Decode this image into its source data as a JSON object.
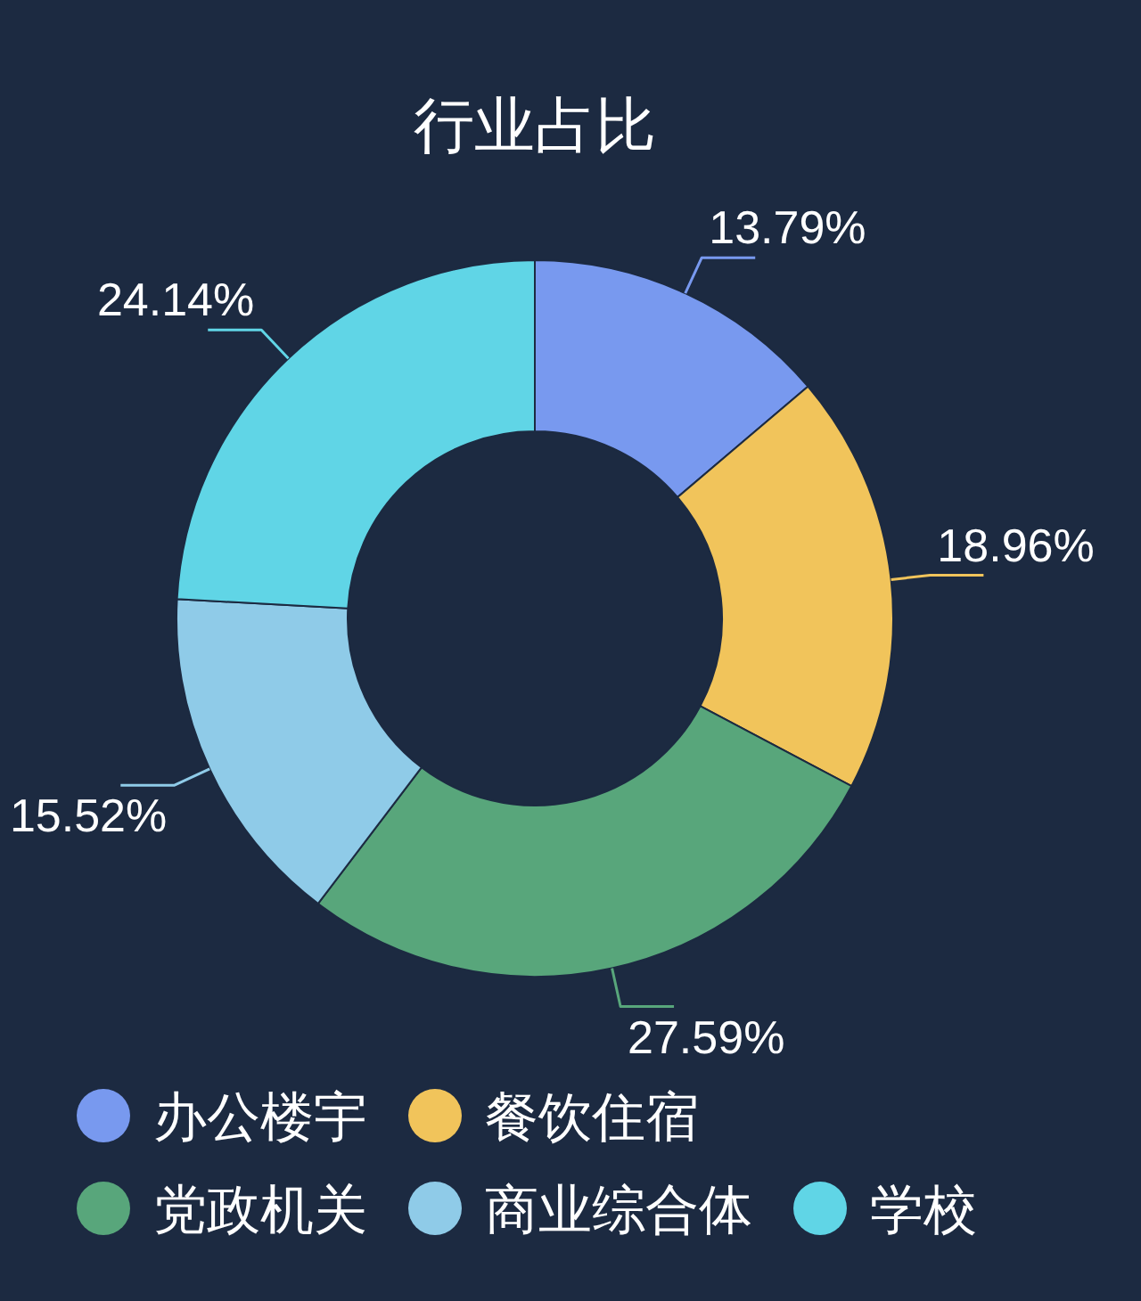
{
  "chart_data": {
    "type": "donut",
    "title": "行业占比",
    "categories": [
      "办公楼宇",
      "餐饮住宿",
      "党政机关",
      "商业综合体",
      "学校"
    ],
    "values": [
      13.79,
      18.96,
      27.59,
      15.52,
      24.14
    ],
    "colors": [
      "#7899ef",
      "#f1c45b",
      "#58a67b",
      "#8fcbe8",
      "#60d5e6"
    ],
    "value_labels": [
      "13.79%",
      "18.96%",
      "27.59%",
      "15.52%",
      "24.14%"
    ],
    "legend": "bottom"
  }
}
